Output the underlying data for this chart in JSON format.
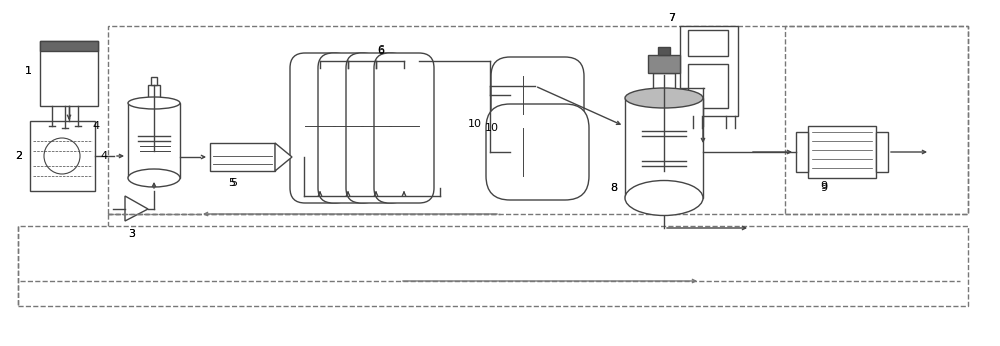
{
  "bg_color": "#ffffff",
  "line_color": "#444444",
  "dash_color": "#777777",
  "fig_width": 10.0,
  "fig_height": 3.46,
  "dpi": 100
}
